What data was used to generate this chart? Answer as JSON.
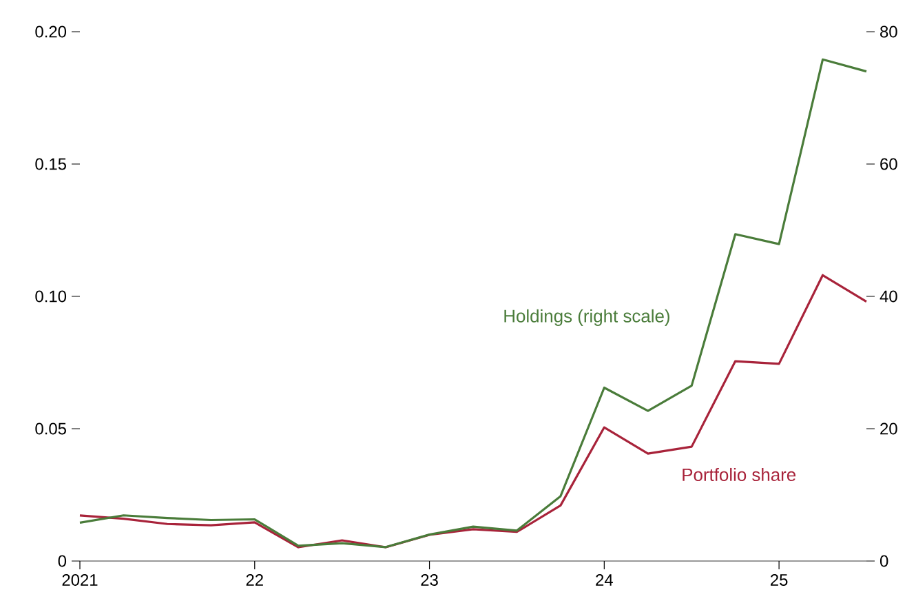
{
  "chart_data": {
    "type": "line",
    "x": [
      2021,
      2021.25,
      2021.5,
      2021.75,
      2022,
      2022.25,
      2022.5,
      2022.75,
      2023,
      2023.25,
      2023.5,
      2023.75,
      2024,
      2024.25,
      2024.5,
      2024.75,
      2025,
      2025.25,
      2025.5
    ],
    "series": [
      {
        "name": "Portfolio share",
        "color": "#a8233a",
        "values": [
          0.0172,
          0.016,
          0.014,
          0.0135,
          0.0146,
          0.0052,
          0.0078,
          0.0052,
          0.0099,
          0.012,
          0.011,
          0.021,
          0.0505,
          0.0406,
          0.0432,
          0.0755,
          0.0745,
          0.108,
          0.098
        ]
      },
      {
        "name": "Holdings (right scale)",
        "color": "#4a7c3a",
        "axis": "y2",
        "values": [
          5.8,
          6.9,
          6.5,
          6.2,
          6.3,
          2.3,
          2.7,
          2.1,
          4.0,
          5.2,
          4.6,
          9.8,
          26.2,
          22.7,
          26.5,
          49.4,
          47.9,
          75.8,
          74.0
        ]
      }
    ],
    "xlim": [
      2021,
      2025.5
    ],
    "xticks": [
      {
        "value": 2021,
        "label": "2021"
      },
      {
        "value": 2022,
        "label": "22"
      },
      {
        "value": 2023,
        "label": "23"
      },
      {
        "value": 2024,
        "label": "24"
      },
      {
        "value": 2025,
        "label": "25"
      }
    ],
    "ylim": [
      0,
      0.2
    ],
    "yticks": [
      0,
      0.05,
      {
        "value": 0.1,
        "label": "0.10"
      },
      0.15,
      {
        "value": 0.2,
        "label": "0.20"
      }
    ],
    "y2lim": [
      0,
      80
    ],
    "y2ticks": [
      0,
      20,
      40,
      60,
      80
    ],
    "grid": false,
    "legend": false,
    "marker": "none",
    "line_style": "solid"
  }
}
